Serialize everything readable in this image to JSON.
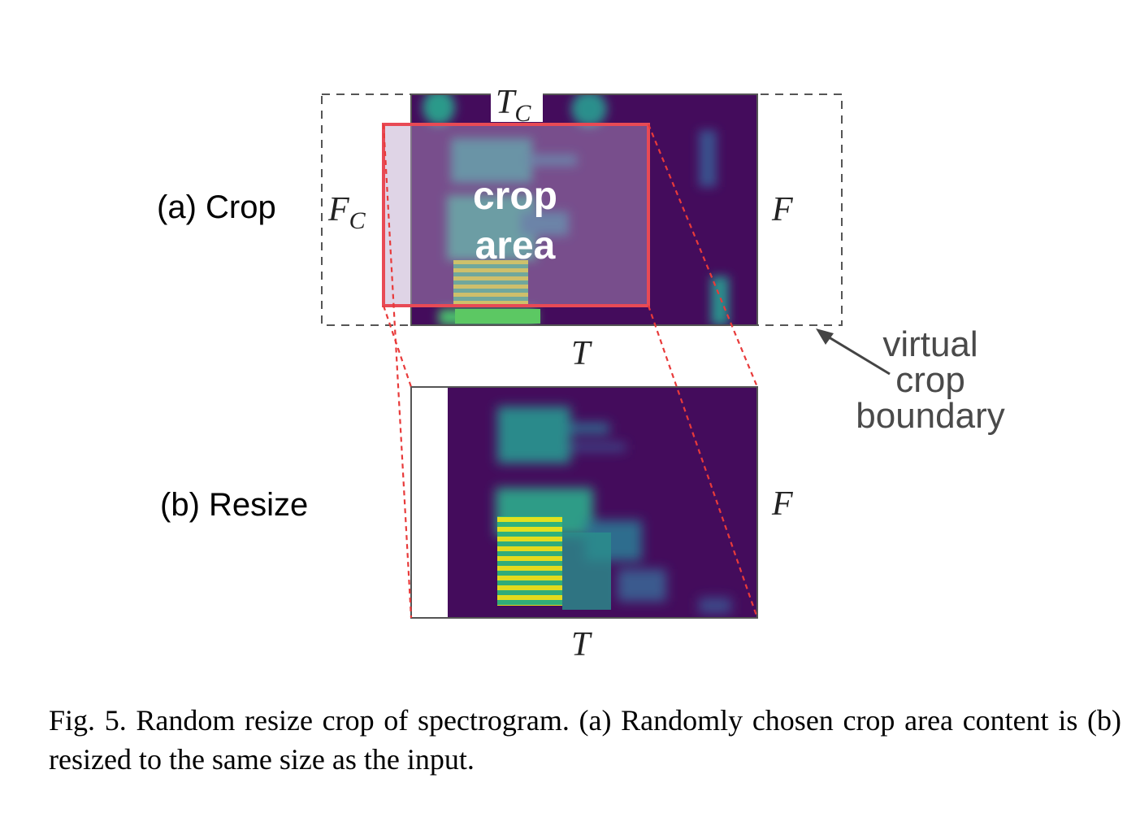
{
  "figure": {
    "label_a": "(a) Crop",
    "label_b": "(b) Resize",
    "tc_main": "T",
    "tc_sub": "C",
    "fc_main": "F",
    "fc_sub": "C",
    "f_top": "F",
    "f_bottom": "F",
    "t_top": "T",
    "t_bottom": "T",
    "crop_line1": "crop",
    "crop_line2": "area",
    "virtual_line1": "virtual",
    "virtual_line2": "crop",
    "virtual_line3": "boundary",
    "colors": {
      "crop_box": "#e84a55",
      "dashed_guides": "#e83a3a",
      "virtual_boundary": "#555555",
      "spectrogram_bg": "#3f0d5a",
      "spectrogram_hot": "#f2e61a"
    }
  },
  "caption": "Fig. 5.  Random resize crop of spectrogram. (a) Randomly chosen crop area content is (b) resized to the same size as the input."
}
